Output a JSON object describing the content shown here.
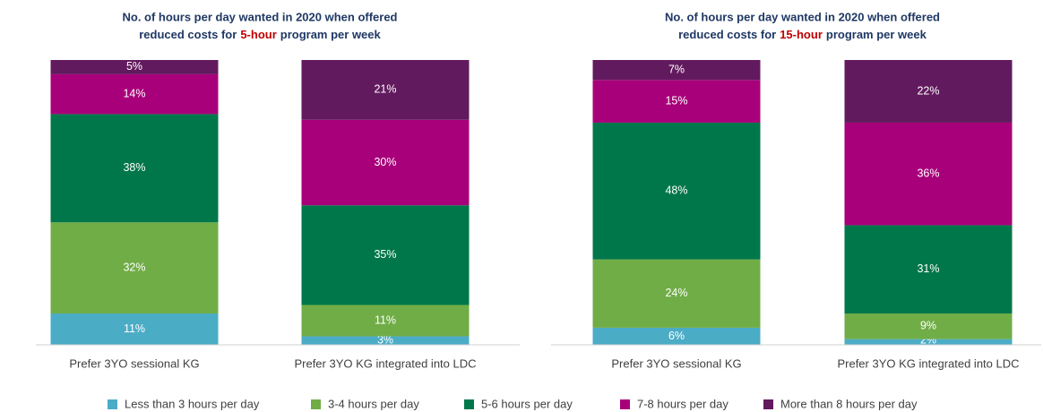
{
  "chart_data": [
    {
      "type": "stacked_bar_100",
      "title": {
        "line1": "No. of hours per day wanted in 2020 when offered",
        "line2_before": "reduced costs for",
        "highlight": "5-hour",
        "line2_after": "program per week"
      },
      "categories": [
        "Prefer 3YO sessional KG",
        "Prefer 3YO KG integrated into LDC"
      ],
      "series": [
        {
          "values": [
            11,
            3
          ],
          "value_labels": [
            "11%",
            "3%"
          ]
        },
        {
          "values": [
            32,
            11
          ],
          "value_labels": [
            "32%",
            "11%"
          ]
        },
        {
          "values": [
            38,
            35
          ],
          "value_labels": [
            "38%",
            "35%"
          ]
        },
        {
          "values": [
            14,
            30
          ],
          "value_labels": [
            "14%",
            "30%"
          ]
        },
        {
          "values": [
            5,
            21
          ],
          "value_labels": [
            "5%",
            "21%"
          ]
        }
      ]
    },
    {
      "type": "stacked_bar_100",
      "title": {
        "line1": "No. of hours per day wanted in 2020 when offered",
        "line2_before": "reduced costs for",
        "highlight": "15-hour",
        "line2_after": "program per week"
      },
      "categories": [
        "Prefer 3YO sessional KG",
        "Prefer 3YO KG integrated into LDC"
      ],
      "series": [
        {
          "values": [
            6,
            2
          ],
          "value_labels": [
            "6%",
            "2%"
          ]
        },
        {
          "values": [
            24,
            9
          ],
          "value_labels": [
            "24%",
            "9%"
          ]
        },
        {
          "values": [
            48,
            31
          ],
          "value_labels": [
            "48%",
            "31%"
          ]
        },
        {
          "values": [
            15,
            36
          ],
          "value_labels": [
            "15%",
            "36%"
          ]
        },
        {
          "values": [
            7,
            22
          ],
          "value_labels": [
            "7%",
            "22%"
          ]
        }
      ]
    }
  ],
  "title_color": "#1f3864",
  "highlight_color": "#c00000",
  "legend": [
    {
      "name": "Less than 3 hours per day",
      "color": "#4bacc6"
    },
    {
      "name": "3-4 hours per day",
      "color": "#70ad47"
    },
    {
      "name": "5-6 hours per day",
      "color": "#00774a"
    },
    {
      "name": "7-8 hours per day",
      "color": "#a8007a"
    },
    {
      "name": "More than 8 hours per day",
      "color": "#621a5e"
    }
  ]
}
